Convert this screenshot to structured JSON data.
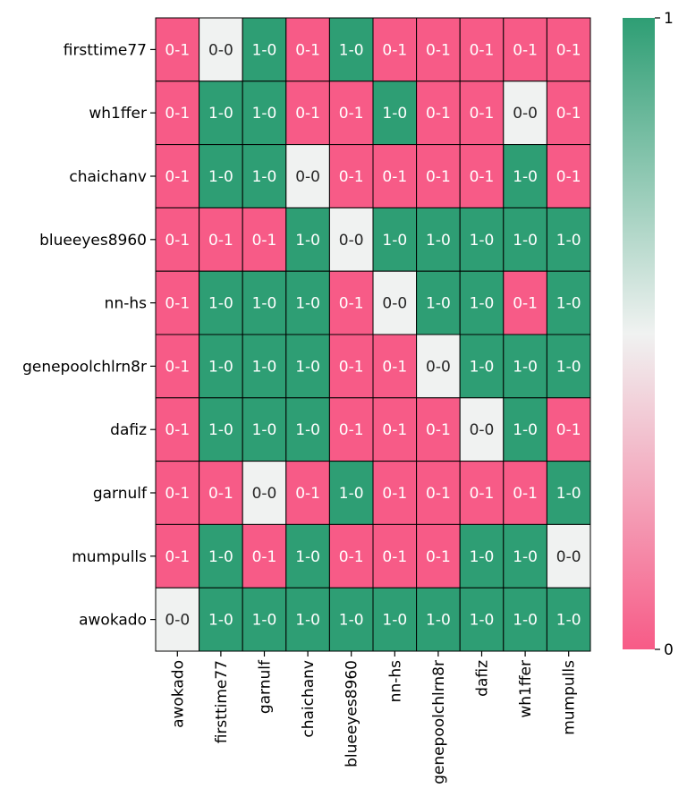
{
  "chart_data": {
    "type": "heatmap",
    "title": "",
    "xlabel": "",
    "ylabel": "",
    "rows": [
      "firsttime77",
      "wh1ffer",
      "chaichanv",
      "blueeyes8960",
      "nn-hs",
      "genepoolchlrn8r",
      "dafiz",
      "garnulf",
      "mumpulls",
      "awokado"
    ],
    "columns": [
      "awokado",
      "firsttime77",
      "garnulf",
      "chaichanv",
      "blueeyes8960",
      "nn-hs",
      "genepoolchlrn8r",
      "dafiz",
      "wh1ffer",
      "mumpulls"
    ],
    "values": [
      [
        0,
        0.5,
        1,
        0,
        1,
        0,
        0,
        0,
        0,
        0
      ],
      [
        0,
        1,
        1,
        0,
        0,
        1,
        0,
        0,
        0.5,
        0
      ],
      [
        0,
        1,
        1,
        0.5,
        0,
        0,
        0,
        0,
        1,
        0
      ],
      [
        0,
        0,
        0,
        1,
        0.5,
        1,
        1,
        1,
        1,
        1
      ],
      [
        0,
        1,
        1,
        1,
        0,
        0.5,
        1,
        1,
        0,
        1
      ],
      [
        0,
        1,
        1,
        1,
        0,
        0,
        0.5,
        1,
        1,
        1
      ],
      [
        0,
        1,
        1,
        1,
        0,
        0,
        0,
        0.5,
        1,
        0
      ],
      [
        0,
        0,
        0.5,
        0,
        1,
        0,
        0,
        0,
        0,
        1
      ],
      [
        0,
        1,
        0,
        1,
        0,
        0,
        0,
        1,
        1,
        0.5
      ],
      [
        0.5,
        1,
        1,
        1,
        1,
        1,
        1,
        1,
        1,
        1
      ]
    ],
    "annotations": [
      [
        "0-1",
        "0-0",
        "1-0",
        "0-1",
        "1-0",
        "0-1",
        "0-1",
        "0-1",
        "0-1",
        "0-1"
      ],
      [
        "0-1",
        "1-0",
        "1-0",
        "0-1",
        "0-1",
        "1-0",
        "0-1",
        "0-1",
        "0-0",
        "0-1"
      ],
      [
        "0-1",
        "1-0",
        "1-0",
        "0-0",
        "0-1",
        "0-1",
        "0-1",
        "0-1",
        "1-0",
        "0-1"
      ],
      [
        "0-1",
        "0-1",
        "0-1",
        "1-0",
        "0-0",
        "1-0",
        "1-0",
        "1-0",
        "1-0",
        "1-0"
      ],
      [
        "0-1",
        "1-0",
        "1-0",
        "1-0",
        "0-1",
        "0-0",
        "1-0",
        "1-0",
        "0-1",
        "1-0"
      ],
      [
        "0-1",
        "1-0",
        "1-0",
        "1-0",
        "0-1",
        "0-1",
        "0-0",
        "1-0",
        "1-0",
        "1-0"
      ],
      [
        "0-1",
        "1-0",
        "1-0",
        "1-0",
        "0-1",
        "0-1",
        "0-1",
        "0-0",
        "1-0",
        "0-1"
      ],
      [
        "0-1",
        "0-1",
        "0-0",
        "0-1",
        "1-0",
        "0-1",
        "0-1",
        "0-1",
        "0-1",
        "1-0"
      ],
      [
        "0-1",
        "1-0",
        "0-1",
        "1-0",
        "0-1",
        "0-1",
        "0-1",
        "1-0",
        "1-0",
        "0-0"
      ],
      [
        "0-0",
        "1-0",
        "1-0",
        "1-0",
        "1-0",
        "1-0",
        "1-0",
        "1-0",
        "1-0",
        "1-0"
      ]
    ],
    "colorbar": {
      "min": 0,
      "max": 1,
      "ticks": [
        "0",
        "1"
      ]
    },
    "colors": {
      "low": "#f75b87",
      "mid": "#f0f2f1",
      "high": "#2e9e74",
      "grid": "#000000"
    }
  }
}
